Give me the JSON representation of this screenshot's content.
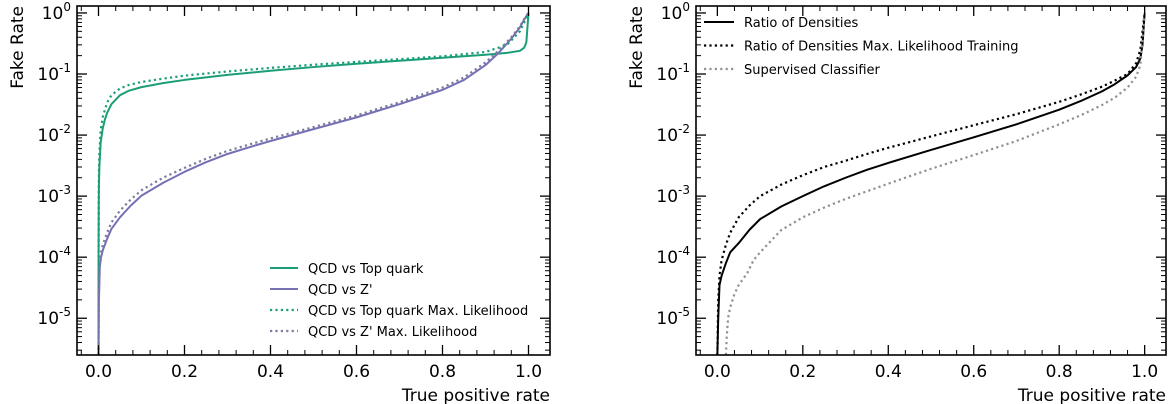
{
  "chart_data": [
    {
      "type": "line",
      "xlabel": "True positive rate",
      "ylabel": "Fake Rate",
      "xlim": [
        -0.05,
        1.05
      ],
      "ylim": [
        2.5e-06,
        1.3
      ],
      "yscale": "log",
      "xticks": [
        "0.0",
        "0.2",
        "0.4",
        "0.6",
        "0.8",
        "1.0"
      ],
      "yticks": [
        {
          "value": 1,
          "base": "10",
          "exp": "0"
        },
        {
          "value": 0.1,
          "base": "10",
          "exp": "-1"
        },
        {
          "value": 0.01,
          "base": "10",
          "exp": "-2"
        },
        {
          "value": 0.001,
          "base": "10",
          "exp": "-3"
        },
        {
          "value": 0.0001,
          "base": "10",
          "exp": "-4"
        },
        {
          "value": 1e-05,
          "base": "10",
          "exp": "-5"
        }
      ],
      "legend_position": "lower-right",
      "series": [
        {
          "name": "QCD vs Top quark",
          "color": "#1b9e77",
          "style": "solid",
          "x": [
            0.0,
            0.0001,
            0.0005,
            0.001,
            0.002,
            0.005,
            0.01,
            0.015,
            0.02,
            0.03,
            0.05,
            0.07,
            0.1,
            0.15,
            0.2,
            0.3,
            0.4,
            0.5,
            0.6,
            0.7,
            0.8,
            0.9,
            0.95,
            0.98,
            0.99,
            0.995,
            1.0
          ],
          "y": [
            2.5e-06,
            0.0001,
            0.0006,
            0.0015,
            0.003,
            0.0075,
            0.013,
            0.018,
            0.023,
            0.032,
            0.045,
            0.053,
            0.061,
            0.071,
            0.08,
            0.097,
            0.113,
            0.13,
            0.147,
            0.165,
            0.185,
            0.207,
            0.222,
            0.24,
            0.27,
            0.33,
            1.0
          ]
        },
        {
          "name": "QCD vs Z'",
          "color": "#7570b3",
          "style": "solid",
          "x": [
            0.0,
            0.001,
            0.003,
            0.006,
            0.01,
            0.02,
            0.03,
            0.05,
            0.075,
            0.1,
            0.15,
            0.2,
            0.25,
            0.3,
            0.35,
            0.4,
            0.5,
            0.6,
            0.7,
            0.8,
            0.85,
            0.9,
            0.93,
            0.96,
            0.98,
            0.99,
            1.0
          ],
          "y": [
            2.5e-06,
            2e-05,
            7e-05,
            0.0001,
            0.00013,
            0.0002,
            0.00029,
            0.00045,
            0.0007,
            0.00102,
            0.00165,
            0.0025,
            0.0036,
            0.0049,
            0.0063,
            0.008,
            0.0125,
            0.0195,
            0.032,
            0.055,
            0.08,
            0.14,
            0.22,
            0.38,
            0.58,
            0.78,
            1.0
          ]
        },
        {
          "name": "QCD vs Top quark Max. Likelihood",
          "color": "#1b9e77",
          "style": "dotted",
          "x": [
            0.0,
            0.0005,
            0.001,
            0.002,
            0.005,
            0.01,
            0.02,
            0.03,
            0.05,
            0.07,
            0.1,
            0.15,
            0.2,
            0.3,
            0.4,
            0.5,
            0.6,
            0.7,
            0.8,
            0.9,
            0.95,
            0.98,
            0.99,
            1.0
          ],
          "y": [
            2.5e-06,
            0.001,
            0.0025,
            0.005,
            0.012,
            0.02,
            0.034,
            0.045,
            0.058,
            0.066,
            0.074,
            0.084,
            0.094,
            0.11,
            0.126,
            0.142,
            0.158,
            0.175,
            0.195,
            0.23,
            0.3,
            0.5,
            0.7,
            1.0
          ]
        },
        {
          "name": "QCD vs Z' Max. Likelihood",
          "color": "#7b7b9e",
          "style": "dotted",
          "x": [
            0.0,
            0.001,
            0.003,
            0.006,
            0.01,
            0.02,
            0.03,
            0.05,
            0.075,
            0.1,
            0.15,
            0.2,
            0.25,
            0.3,
            0.35,
            0.4,
            0.5,
            0.6,
            0.7,
            0.8,
            0.85,
            0.9,
            0.93,
            0.96,
            0.98,
            0.99,
            1.0
          ],
          "y": [
            2.5e-06,
            2.5e-05,
            8e-05,
            0.00012,
            0.00016,
            0.00025,
            0.00037,
            0.00058,
            0.00088,
            0.00125,
            0.002,
            0.0029,
            0.0041,
            0.0055,
            0.007,
            0.0088,
            0.0135,
            0.021,
            0.0345,
            0.06,
            0.088,
            0.155,
            0.24,
            0.4,
            0.6,
            0.8,
            1.0
          ]
        }
      ]
    },
    {
      "type": "line",
      "xlabel": "True positive rate",
      "ylabel": "Fake Rate",
      "xlim": [
        -0.05,
        1.05
      ],
      "ylim": [
        2.5e-06,
        1.3
      ],
      "yscale": "log",
      "xticks": [
        "0.0",
        "0.2",
        "0.4",
        "0.6",
        "0.8",
        "1.0"
      ],
      "yticks": [
        {
          "value": 1,
          "base": "10",
          "exp": "0"
        },
        {
          "value": 0.1,
          "base": "10",
          "exp": "-1"
        },
        {
          "value": 0.01,
          "base": "10",
          "exp": "-2"
        },
        {
          "value": 0.001,
          "base": "10",
          "exp": "-3"
        },
        {
          "value": 0.0001,
          "base": "10",
          "exp": "-4"
        },
        {
          "value": 1e-05,
          "base": "10",
          "exp": "-5"
        }
      ],
      "legend_position": "top-left",
      "series": [
        {
          "name": "Ratio of Densities",
          "color": "#000000",
          "style": "solid",
          "x": [
            0.0,
            0.002,
            0.005,
            0.01,
            0.02,
            0.03,
            0.05,
            0.075,
            0.1,
            0.15,
            0.2,
            0.25,
            0.3,
            0.35,
            0.4,
            0.5,
            0.6,
            0.7,
            0.8,
            0.85,
            0.9,
            0.93,
            0.96,
            0.98,
            0.99,
            0.995,
            1.0
          ],
          "y": [
            2.5e-06,
            1e-05,
            3.5e-05,
            5e-05,
            8e-05,
            0.00012,
            0.00017,
            0.00028,
            0.00042,
            0.00068,
            0.001,
            0.00145,
            0.002,
            0.0027,
            0.0035,
            0.0057,
            0.0092,
            0.015,
            0.026,
            0.036,
            0.052,
            0.068,
            0.095,
            0.13,
            0.18,
            0.3,
            1.0
          ]
        },
        {
          "name": "Ratio of Densities Max. Likelihood Training",
          "color": "#000000",
          "style": "dotted",
          "x": [
            0.0,
            0.002,
            0.005,
            0.01,
            0.02,
            0.03,
            0.05,
            0.075,
            0.1,
            0.15,
            0.2,
            0.25,
            0.3,
            0.35,
            0.4,
            0.5,
            0.6,
            0.7,
            0.8,
            0.85,
            0.9,
            0.93,
            0.96,
            0.98,
            0.99,
            1.0
          ],
          "y": [
            2.5e-06,
            2e-05,
            5e-05,
            9e-05,
            0.00016,
            0.00025,
            0.00045,
            0.0007,
            0.001,
            0.00155,
            0.0022,
            0.003,
            0.0038,
            0.0049,
            0.0062,
            0.0095,
            0.0145,
            0.022,
            0.035,
            0.046,
            0.062,
            0.078,
            0.1,
            0.15,
            0.25,
            1.0
          ]
        },
        {
          "name": "Supervised Classifier",
          "color": "#909090",
          "style": "dotted",
          "x": [
            0.02,
            0.022,
            0.025,
            0.03,
            0.04,
            0.05,
            0.07,
            0.085,
            0.1,
            0.13,
            0.15,
            0.2,
            0.25,
            0.3,
            0.35,
            0.4,
            0.5,
            0.6,
            0.7,
            0.8,
            0.85,
            0.9,
            0.93,
            0.96,
            0.98,
            0.99,
            1.0
          ],
          "y": [
            2.5e-06,
            5e-06,
            1e-05,
            1.5e-05,
            2.5e-05,
            3.5e-05,
            5.5e-05,
            9e-05,
            0.00012,
            0.0002,
            0.00028,
            0.00045,
            0.00065,
            0.0009,
            0.0012,
            0.0016,
            0.0028,
            0.0047,
            0.008,
            0.015,
            0.021,
            0.031,
            0.041,
            0.06,
            0.09,
            0.14,
            1.0
          ]
        }
      ]
    }
  ]
}
